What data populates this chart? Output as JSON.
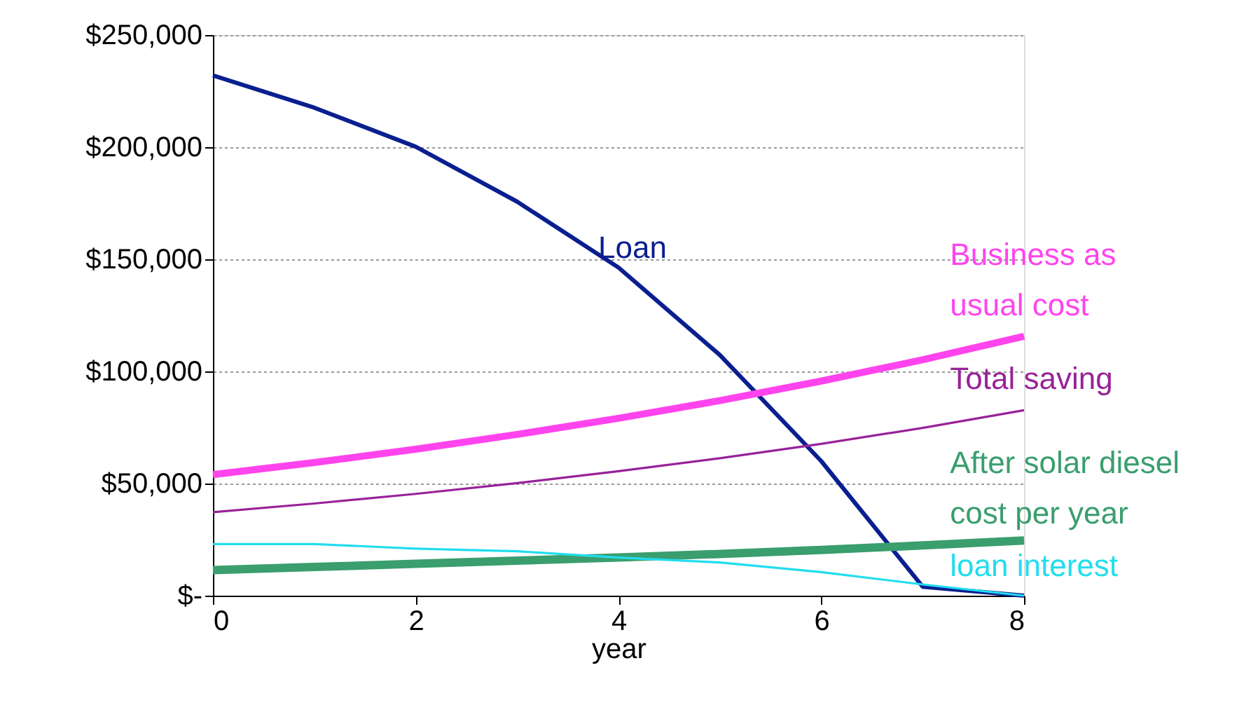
{
  "chart_data": {
    "type": "line",
    "xlabel": "year",
    "x": [
      0,
      1,
      2,
      3,
      4,
      5,
      6,
      7,
      8
    ],
    "series": [
      {
        "name": "Loan",
        "color": "#0a1f8f",
        "values": [
          232000,
          217600,
          200200,
          175700,
          146300,
          107300,
          60000,
          4000,
          0
        ]
      },
      {
        "name": "Business as usual cost",
        "color": "#ff44ee",
        "values": [
          54000,
          59400,
          65300,
          71900,
          79100,
          87000,
          95700,
          105200,
          115700
        ]
      },
      {
        "name": "Total saving",
        "color": "#992299",
        "values": [
          37200,
          41100,
          45400,
          50200,
          55500,
          61300,
          67700,
          74800,
          82700
        ]
      },
      {
        "name": "After solar diesel cost per year",
        "color": "#3a9e6e",
        "values": [
          11400,
          12800,
          14200,
          15600,
          17000,
          18600,
          20400,
          22400,
          24600
        ]
      },
      {
        "name": "loan interest",
        "color": "#22ddee",
        "values": [
          23000,
          23000,
          21000,
          19800,
          17000,
          14800,
          10500,
          5000,
          0
        ]
      }
    ],
    "xlim": [
      0,
      8
    ],
    "xticks": [
      0,
      2,
      4,
      6,
      8
    ],
    "ylim": [
      0,
      250000
    ],
    "yticks": [
      {
        "value": 0,
        "label": "$-"
      },
      {
        "value": 50000,
        "label": "$50,000"
      },
      {
        "value": 100000,
        "label": "$100,000"
      },
      {
        "value": 150000,
        "label": "$150,000"
      },
      {
        "value": 200000,
        "label": "$200,000"
      },
      {
        "value": 250000,
        "label": "$250,000"
      }
    ],
    "grid": "y",
    "marker": "none",
    "line_style": "solid"
  }
}
